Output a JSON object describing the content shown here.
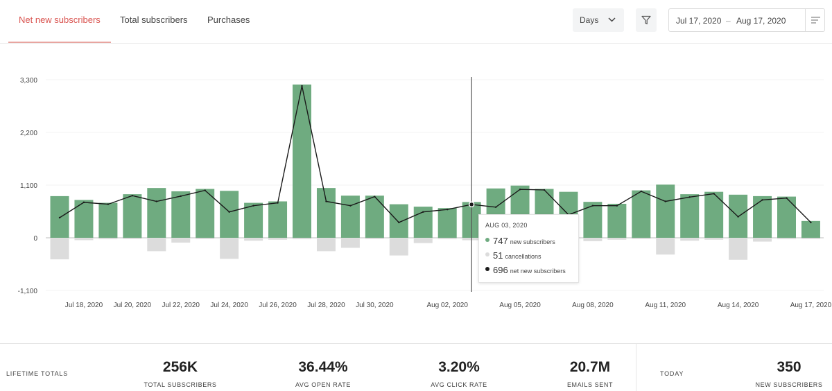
{
  "tabs": [
    {
      "label": "Net new subscribers",
      "active": true
    },
    {
      "label": "Total subscribers",
      "active": false
    },
    {
      "label": "Purchases",
      "active": false
    }
  ],
  "controls": {
    "granularity": "Days",
    "date_start": "Jul 17, 2020",
    "date_sep": "–",
    "date_end": "Aug 17, 2020"
  },
  "colors": {
    "accent": "#d9534f",
    "bar_green": "#6fab80",
    "bar_gray": "#dcdcdc",
    "line": "#1a1a1a"
  },
  "chart_data": {
    "type": "bar",
    "title": "Net new subscribers",
    "y_ticks": [
      3300,
      2200,
      1100,
      0,
      -1100
    ],
    "y_tick_labels": [
      "3,300",
      "2,200",
      "1,100",
      "0",
      "-1,100"
    ],
    "ylim": [
      -1100,
      3300
    ],
    "x_tick_labels": [
      {
        "index": 1,
        "label": "Jul 18, 2020"
      },
      {
        "index": 3,
        "label": "Jul 20, 2020"
      },
      {
        "index": 5,
        "label": "Jul 22, 2020"
      },
      {
        "index": 7,
        "label": "Jul 24, 2020"
      },
      {
        "index": 9,
        "label": "Jul 26, 2020"
      },
      {
        "index": 11,
        "label": "Jul 28, 2020"
      },
      {
        "index": 13,
        "label": "Jul 30, 2020"
      },
      {
        "index": 16,
        "label": "Aug 02, 2020"
      },
      {
        "index": 19,
        "label": "Aug 05, 2020"
      },
      {
        "index": 22,
        "label": "Aug 08, 2020"
      },
      {
        "index": 25,
        "label": "Aug 11, 2020"
      },
      {
        "index": 28,
        "label": "Aug 14, 2020"
      },
      {
        "index": 31,
        "label": "Aug 17, 2020"
      }
    ],
    "series": [
      {
        "name": "new subscribers",
        "values": [
          870,
          790,
          730,
          910,
          1040,
          970,
          1020,
          980,
          730,
          760,
          3200,
          1040,
          880,
          880,
          700,
          650,
          620,
          747,
          1030,
          1090,
          1020,
          960,
          750,
          710,
          990,
          1110,
          910,
          960,
          900,
          870,
          860,
          350
        ]
      },
      {
        "name": "cancellations",
        "values": [
          -450,
          -50,
          -30,
          -20,
          -280,
          -100,
          -20,
          -440,
          -60,
          -40,
          -30,
          -280,
          -210,
          -20,
          -370,
          -110,
          -30,
          -51,
          -40,
          -20,
          -20,
          -30,
          -70,
          -40,
          -20,
          -350,
          -60,
          -40,
          -460,
          -80,
          -30,
          -20
        ]
      },
      {
        "name": "net new subscribers",
        "values": [
          420,
          740,
          700,
          880,
          760,
          870,
          990,
          540,
          670,
          730,
          3170,
          760,
          670,
          860,
          320,
          540,
          590,
          696,
          640,
          1010,
          1000,
          480,
          670,
          670,
          970,
          760,
          850,
          920,
          440,
          790,
          830,
          320
        ]
      }
    ],
    "highlight_index": 17
  },
  "tooltip": {
    "date": "AUG 03, 2020",
    "rows": [
      {
        "value": "747",
        "label": "new subscribers",
        "color": "#6fab80"
      },
      {
        "value": "51",
        "label": "cancellations",
        "color": "#dcdcdc"
      },
      {
        "value": "696",
        "label": "net new subscribers",
        "color": "#1a1a1a"
      }
    ]
  },
  "footer": {
    "lifetime_label": "LIFETIME TOTALS",
    "stats": [
      {
        "value": "256K",
        "caption": "TOTAL SUBSCRIBERS"
      },
      {
        "value": "36.44%",
        "caption": "AVG OPEN RATE"
      },
      {
        "value": "3.20%",
        "caption": "AVG CLICK RATE"
      },
      {
        "value": "20.7M",
        "caption": "EMAILS SENT"
      }
    ],
    "today_label": "TODAY",
    "today_value": "350",
    "today_caption": "NEW SUBSCRIBERS"
  }
}
